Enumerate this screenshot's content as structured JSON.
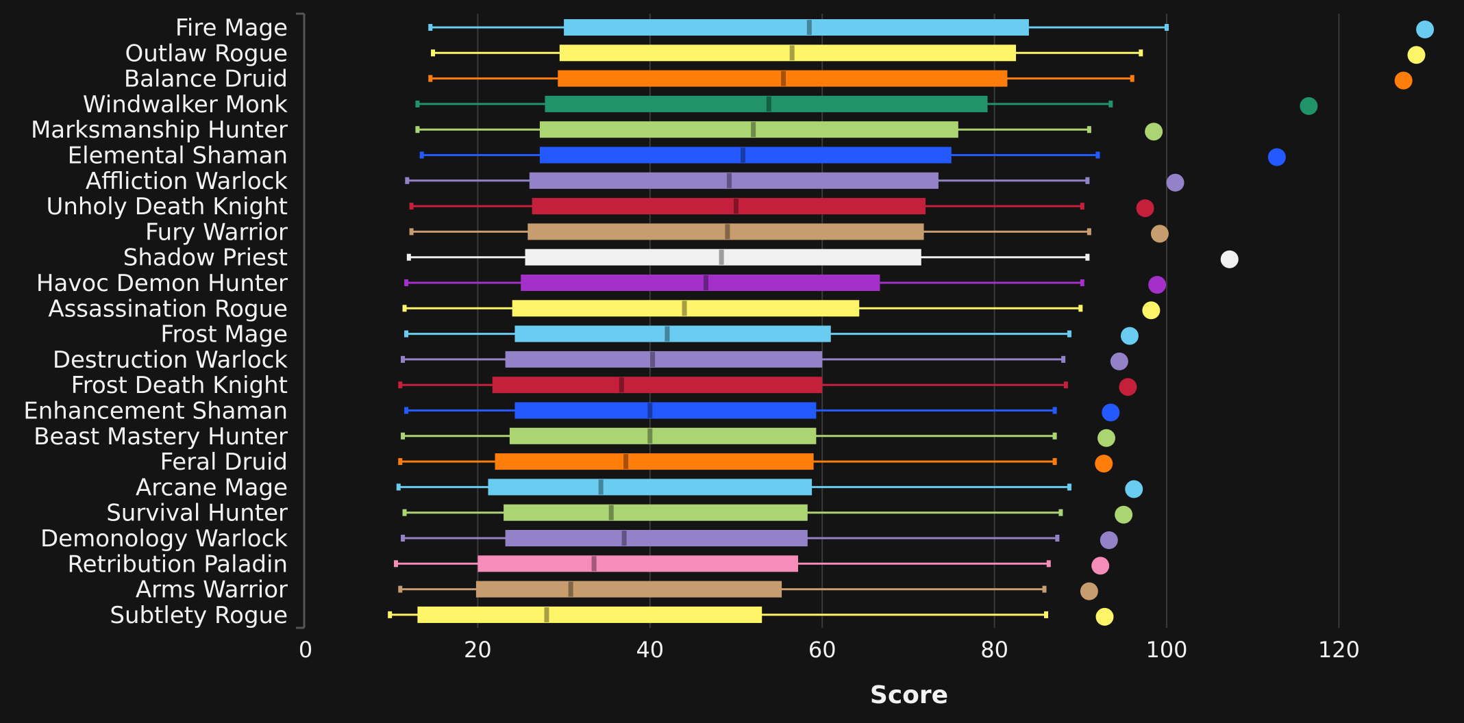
{
  "chart_data": {
    "type": "box",
    "orientation": "horizontal",
    "xlabel": "Score",
    "xlim": [
      0,
      130
    ],
    "xticks": [
      0,
      20,
      40,
      60,
      80,
      100,
      120
    ],
    "grid": true,
    "categories": [
      "Fire Mage",
      "Outlaw Rogue",
      "Balance Druid",
      "Windwalker Monk",
      "Marksmanship Hunter",
      "Elemental Shaman",
      "Affliction Warlock",
      "Unholy Death Knight",
      "Fury Warrior",
      "Shadow Priest",
      "Havoc Demon Hunter",
      "Assassination Rogue",
      "Frost Mage",
      "Destruction Warlock",
      "Frost Death Knight",
      "Enhancement Shaman",
      "Beast Mastery Hunter",
      "Feral Druid",
      "Arcane Mage",
      "Survival Hunter",
      "Demonology Warlock",
      "Retribution Paladin",
      "Arms Warrior",
      "Subtlety Rogue"
    ],
    "series": [
      {
        "min": 14.5,
        "q1": 30.0,
        "median": 58.5,
        "q3": 84.0,
        "max": 100.0,
        "outlier": 130.0,
        "color": "#69ccf0"
      },
      {
        "min": 14.8,
        "q1": 29.5,
        "median": 56.5,
        "q3": 82.5,
        "max": 97.0,
        "outlier": 129.0,
        "color": "#fff569"
      },
      {
        "min": 14.5,
        "q1": 29.3,
        "median": 55.5,
        "q3": 81.5,
        "max": 96.0,
        "outlier": 127.5,
        "color": "#ff7d0a"
      },
      {
        "min": 13.0,
        "q1": 27.8,
        "median": 53.8,
        "q3": 79.2,
        "max": 93.5,
        "outlier": 116.5,
        "color": "#21936a"
      },
      {
        "min": 13.0,
        "q1": 27.2,
        "median": 52.0,
        "q3": 75.8,
        "max": 91.0,
        "outlier": 98.5,
        "color": "#abd473"
      },
      {
        "min": 13.5,
        "q1": 27.2,
        "median": 50.8,
        "q3": 75.0,
        "max": 92.0,
        "outlier": 112.8,
        "color": "#2459ff"
      },
      {
        "min": 11.8,
        "q1": 26.0,
        "median": 49.2,
        "q3": 73.5,
        "max": 90.8,
        "outlier": 101.0,
        "color": "#9482c9"
      },
      {
        "min": 12.3,
        "q1": 26.3,
        "median": 50.0,
        "q3": 72.0,
        "max": 90.2,
        "outlier": 97.5,
        "color": "#c41f3b"
      },
      {
        "min": 12.3,
        "q1": 25.8,
        "median": 49.0,
        "q3": 71.8,
        "max": 91.0,
        "outlier": 99.2,
        "color": "#c79c6e"
      },
      {
        "min": 12.0,
        "q1": 25.5,
        "median": 48.3,
        "q3": 71.5,
        "max": 90.8,
        "outlier": 107.3,
        "color": "#f0f0f0"
      },
      {
        "min": 11.7,
        "q1": 25.0,
        "median": 46.5,
        "q3": 66.7,
        "max": 90.2,
        "outlier": 98.9,
        "color": "#a330c9"
      },
      {
        "min": 11.5,
        "q1": 24.0,
        "median": 44.0,
        "q3": 64.3,
        "max": 90.0,
        "outlier": 98.2,
        "color": "#fff569"
      },
      {
        "min": 11.7,
        "q1": 24.3,
        "median": 42.0,
        "q3": 61.0,
        "max": 88.7,
        "outlier": 95.7,
        "color": "#69ccf0"
      },
      {
        "min": 11.3,
        "q1": 23.2,
        "median": 40.3,
        "q3": 60.0,
        "max": 88.0,
        "outlier": 94.5,
        "color": "#9482c9"
      },
      {
        "min": 11.0,
        "q1": 21.7,
        "median": 36.7,
        "q3": 60.0,
        "max": 88.3,
        "outlier": 95.5,
        "color": "#c41f3b"
      },
      {
        "min": 11.7,
        "q1": 24.3,
        "median": 40.0,
        "q3": 59.3,
        "max": 87.0,
        "outlier": 93.5,
        "color": "#2459ff"
      },
      {
        "min": 11.3,
        "q1": 23.7,
        "median": 40.0,
        "q3": 59.3,
        "max": 87.0,
        "outlier": 93.0,
        "color": "#abd473"
      },
      {
        "min": 11.0,
        "q1": 22.0,
        "median": 37.2,
        "q3": 59.0,
        "max": 87.0,
        "outlier": 92.7,
        "color": "#ff7d0a"
      },
      {
        "min": 10.8,
        "q1": 21.2,
        "median": 34.3,
        "q3": 58.8,
        "max": 88.7,
        "outlier": 96.2,
        "color": "#69ccf0"
      },
      {
        "min": 11.5,
        "q1": 23.0,
        "median": 35.5,
        "q3": 58.3,
        "max": 87.7,
        "outlier": 95.0,
        "color": "#abd473"
      },
      {
        "min": 11.3,
        "q1": 23.2,
        "median": 37.0,
        "q3": 58.3,
        "max": 87.3,
        "outlier": 93.3,
        "color": "#9482c9"
      },
      {
        "min": 10.5,
        "q1": 20.0,
        "median": 33.5,
        "q3": 57.2,
        "max": 86.3,
        "outlier": 92.3,
        "color": "#f58cba"
      },
      {
        "min": 11.0,
        "q1": 19.8,
        "median": 30.8,
        "q3": 55.3,
        "max": 85.8,
        "outlier": 91.0,
        "color": "#c79c6e"
      },
      {
        "min": 9.8,
        "q1": 13.0,
        "median": 28.0,
        "q3": 53.0,
        "max": 86.0,
        "outlier": 92.8,
        "color": "#fff569"
      }
    ]
  }
}
